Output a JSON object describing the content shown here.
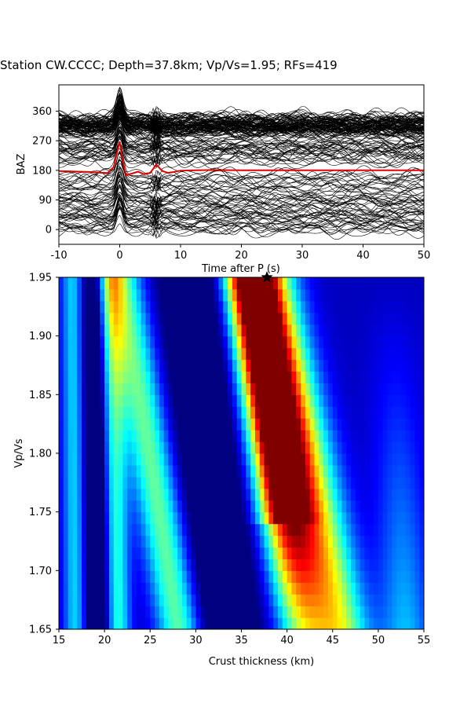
{
  "figure": {
    "title": "Station CW.CCCC; Depth=37.8km; Vp/Vs=1.95; RFs=419"
  },
  "chart_data": [
    {
      "type": "line",
      "title": "",
      "xlabel": "Time after P (s)",
      "ylabel": "BAZ",
      "xlim": [
        -10,
        50
      ],
      "ylim": [
        -45,
        440
      ],
      "x_ticks": [
        -10,
        0,
        10,
        20,
        30,
        40,
        50
      ],
      "y_ticks": [
        0,
        90,
        180,
        270,
        360
      ],
      "num_traces": 419,
      "trace_color": "#000000",
      "stack_color": "#e00000",
      "stack": {
        "x": [
          -10,
          -5,
          -2,
          -1,
          0,
          0.5,
          1,
          2,
          3,
          4,
          5,
          6,
          7,
          8,
          10,
          15,
          20,
          30,
          40,
          50
        ],
        "y": [
          178,
          175,
          172,
          190,
          268,
          210,
          165,
          170,
          176,
          168,
          172,
          198,
          178,
          172,
          179,
          181,
          180,
          180,
          180,
          180
        ]
      }
    },
    {
      "type": "heatmap",
      "title": "",
      "xlabel": "Crust thickness (km)",
      "ylabel": "Vp/Vs",
      "xlim": [
        15,
        55
      ],
      "ylim": [
        1.65,
        1.95
      ],
      "x_ticks": [
        15,
        20,
        25,
        30,
        35,
        40,
        45,
        50,
        55
      ],
      "y_ticks": [
        1.65,
        1.7,
        1.75,
        1.8,
        1.85,
        1.9,
        1.95
      ],
      "colormap": "jet",
      "maximum": {
        "thickness": 37.8,
        "vpvs": 1.95,
        "marker": "star"
      }
    }
  ]
}
